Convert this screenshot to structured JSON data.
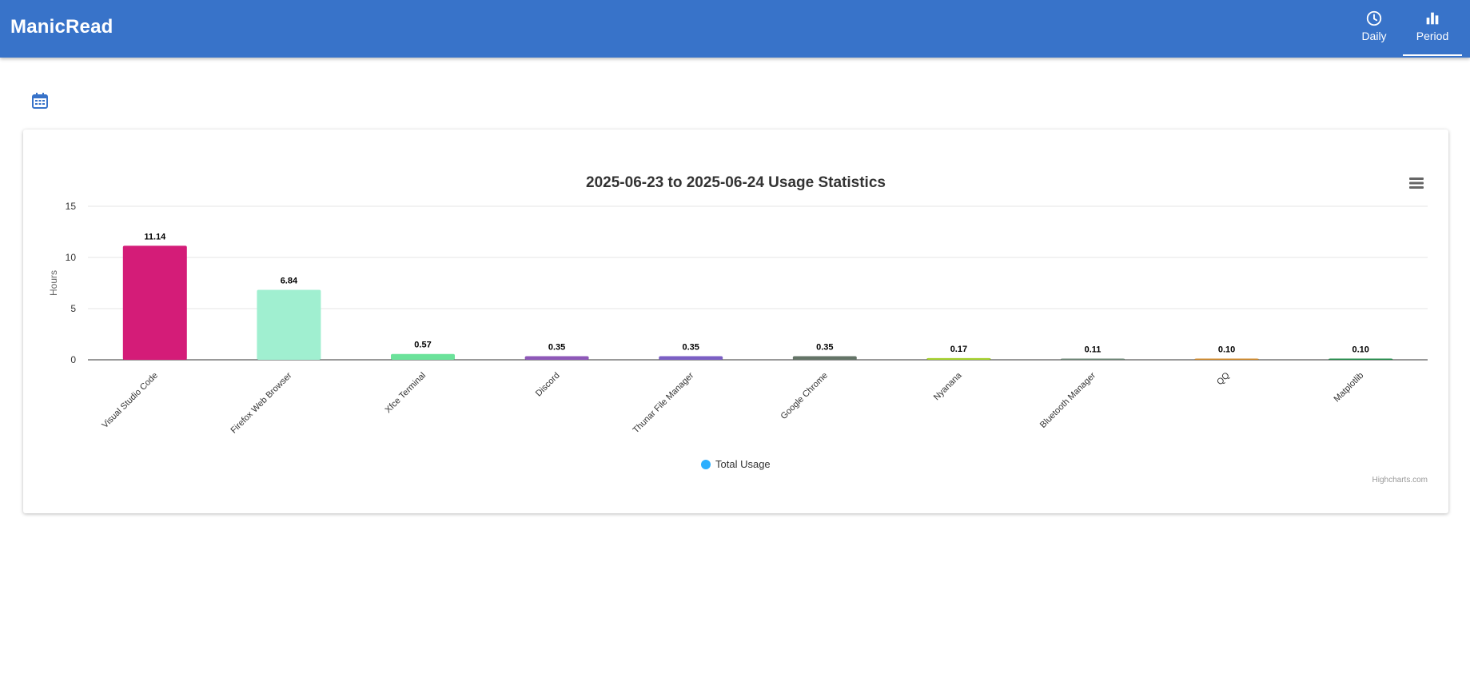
{
  "app": {
    "title": "ManicRead"
  },
  "nav": {
    "tabs": [
      {
        "label": "Daily",
        "icon": "clock-icon",
        "active": false
      },
      {
        "label": "Period",
        "icon": "bar-chart-icon",
        "active": true
      }
    ]
  },
  "toolbar": {
    "calendar_icon": "calendar-icon"
  },
  "colors": {
    "header": "#3873c9",
    "legend": "#2caffe"
  },
  "chart_data": {
    "type": "bar",
    "title": "2025-06-23 to 2025-06-24 Usage Statistics",
    "xlabel": "",
    "ylabel": "Hours",
    "ylim": [
      0,
      15
    ],
    "yticks": [
      0,
      5,
      10,
      15
    ],
    "grid": true,
    "legend_position": "bottom-center",
    "categories": [
      "Visual Studio Code",
      "Firefox Web Browser",
      "Xfce Terminal",
      "Discord",
      "Thunar File Manager",
      "Google Chrome",
      "Nyanana",
      "Bluetooth Manager",
      "QQ",
      "Matplotlib"
    ],
    "series": [
      {
        "name": "Total Usage",
        "values": [
          11.14,
          6.84,
          0.57,
          0.35,
          0.35,
          0.35,
          0.17,
          0.11,
          0.1,
          0.1
        ],
        "labels": [
          "11.14",
          "6.84",
          "0.57",
          "0.35",
          "0.35",
          "0.35",
          "0.17",
          "0.11",
          "0.10",
          "0.10"
        ],
        "colors": [
          "#d41c78",
          "#a0efd0",
          "#6be29a",
          "#8e58b8",
          "#7b5fc4",
          "#647467",
          "#a4d02c",
          "#6b8474",
          "#d1892a",
          "#228c4a"
        ]
      }
    ],
    "credits": "Highcharts.com"
  }
}
